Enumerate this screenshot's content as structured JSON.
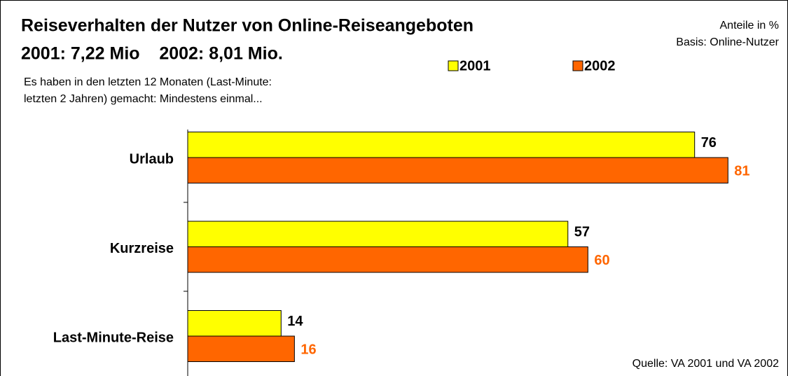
{
  "chart_data": {
    "type": "bar",
    "orientation": "horizontal",
    "title": "Reiseverhalten der Nutzer von Online-Reiseangeboten",
    "subtitle": "2001: 7,22 Mio    2002: 8,01 Mio.",
    "note": [
      "Anteile in %",
      "Basis: Online-Nutzer"
    ],
    "question": [
      "Es haben in den letzten 12 Monaten (Last-Minute:",
      "letzten 2 Jahren) gemacht: Mindestens einmal..."
    ],
    "source": "Quelle: VA 2001 und VA 2002",
    "categories": [
      "Urlaub",
      "Kurzreise",
      "Last-Minute-Reise"
    ],
    "series": [
      {
        "name": "2001",
        "color": "#ffff00",
        "label_color": "#000000",
        "values": [
          76,
          57,
          14
        ]
      },
      {
        "name": "2002",
        "color": "#ff6600",
        "label_color": "#ff6600",
        "values": [
          81,
          60,
          16
        ]
      }
    ],
    "xlim": [
      0,
      90
    ]
  }
}
